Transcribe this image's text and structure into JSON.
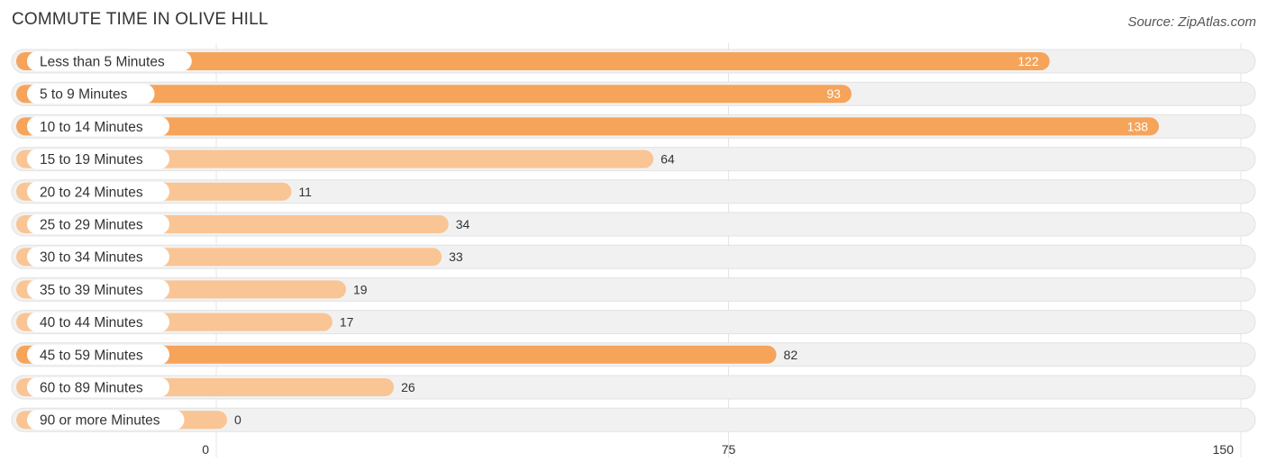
{
  "title": "COMMUTE TIME IN OLIVE HILL",
  "source": "Source: ZipAtlas.com",
  "chart_data": {
    "type": "bar",
    "orientation": "horizontal",
    "title": "COMMUTE TIME IN OLIVE HILL",
    "categories": [
      "Less than 5 Minutes",
      "5 to 9 Minutes",
      "10 to 14 Minutes",
      "15 to 19 Minutes",
      "20 to 24 Minutes",
      "25 to 29 Minutes",
      "30 to 34 Minutes",
      "35 to 39 Minutes",
      "40 to 44 Minutes",
      "45 to 59 Minutes",
      "60 to 89 Minutes",
      "90 or more Minutes"
    ],
    "values": [
      122,
      93,
      138,
      64,
      11,
      34,
      33,
      19,
      17,
      82,
      26,
      0
    ],
    "xlim": [
      0,
      150
    ],
    "xticks": [
      0,
      75,
      150
    ],
    "xtick_labels": [
      "0",
      "75",
      "150"
    ],
    "grid": true,
    "colors": {
      "bar_strong": "#f5a45a",
      "bar_light": "#f9c594",
      "track": "#f1f1f1",
      "track_border": "#e2e2e2",
      "label_bg": "#ffffff",
      "text": "#333333",
      "value_inside": "#ffffff"
    }
  }
}
